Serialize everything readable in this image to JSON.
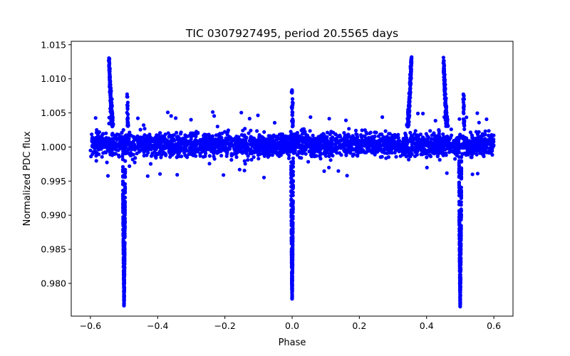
{
  "chart_data": {
    "type": "scatter",
    "title": "TIC 0307927495, period 20.5565 days",
    "xlabel": "Phase",
    "ylabel": "Normalized PDC flux",
    "xlim": [
      -0.657,
      0.657
    ],
    "ylim": [
      0.9752,
      1.0155
    ],
    "xticks": [
      "-0.6",
      "-0.4",
      "-0.2",
      "0.0",
      "0.2",
      "0.4",
      "0.6"
    ],
    "yticks": [
      "0.980",
      "0.985",
      "0.990",
      "0.995",
      "1.000",
      "1.005",
      "1.010",
      "1.015"
    ],
    "grid": false,
    "marker_color": "#0000ff",
    "series": [
      {
        "name": "flux",
        "phase_range": [
          -0.6,
          0.6
        ],
        "baseline": 1.0,
        "noise_band": [
          0.9965,
          1.0042
        ],
        "outlier_range": [
          0.9955,
          1.0052
        ],
        "eclipses": [
          {
            "phase": -0.5,
            "min_flux": 0.977,
            "halfwidth": 0.007
          },
          {
            "phase": 0.0,
            "min_flux": 0.978,
            "halfwidth": 0.006
          },
          {
            "phase": 0.5,
            "min_flux": 0.977,
            "halfwidth": 0.007
          }
        ],
        "spikes": [
          {
            "phase": -0.545,
            "peak_flux": 1.0132,
            "tail": 0.014
          },
          {
            "phase": 0.355,
            "peak_flux": 1.0133,
            "tail": -0.014
          },
          {
            "phase": 0.45,
            "peak_flux": 1.0132,
            "tail": 0.014
          },
          {
            "phase": -0.49,
            "peak_flux": 1.0078,
            "tail": 0.002
          },
          {
            "phase": 0.0,
            "peak_flux": 1.0085,
            "tail": 0.002
          },
          {
            "phase": 0.51,
            "peak_flux": 1.0078,
            "tail": 0.002
          }
        ]
      }
    ]
  }
}
